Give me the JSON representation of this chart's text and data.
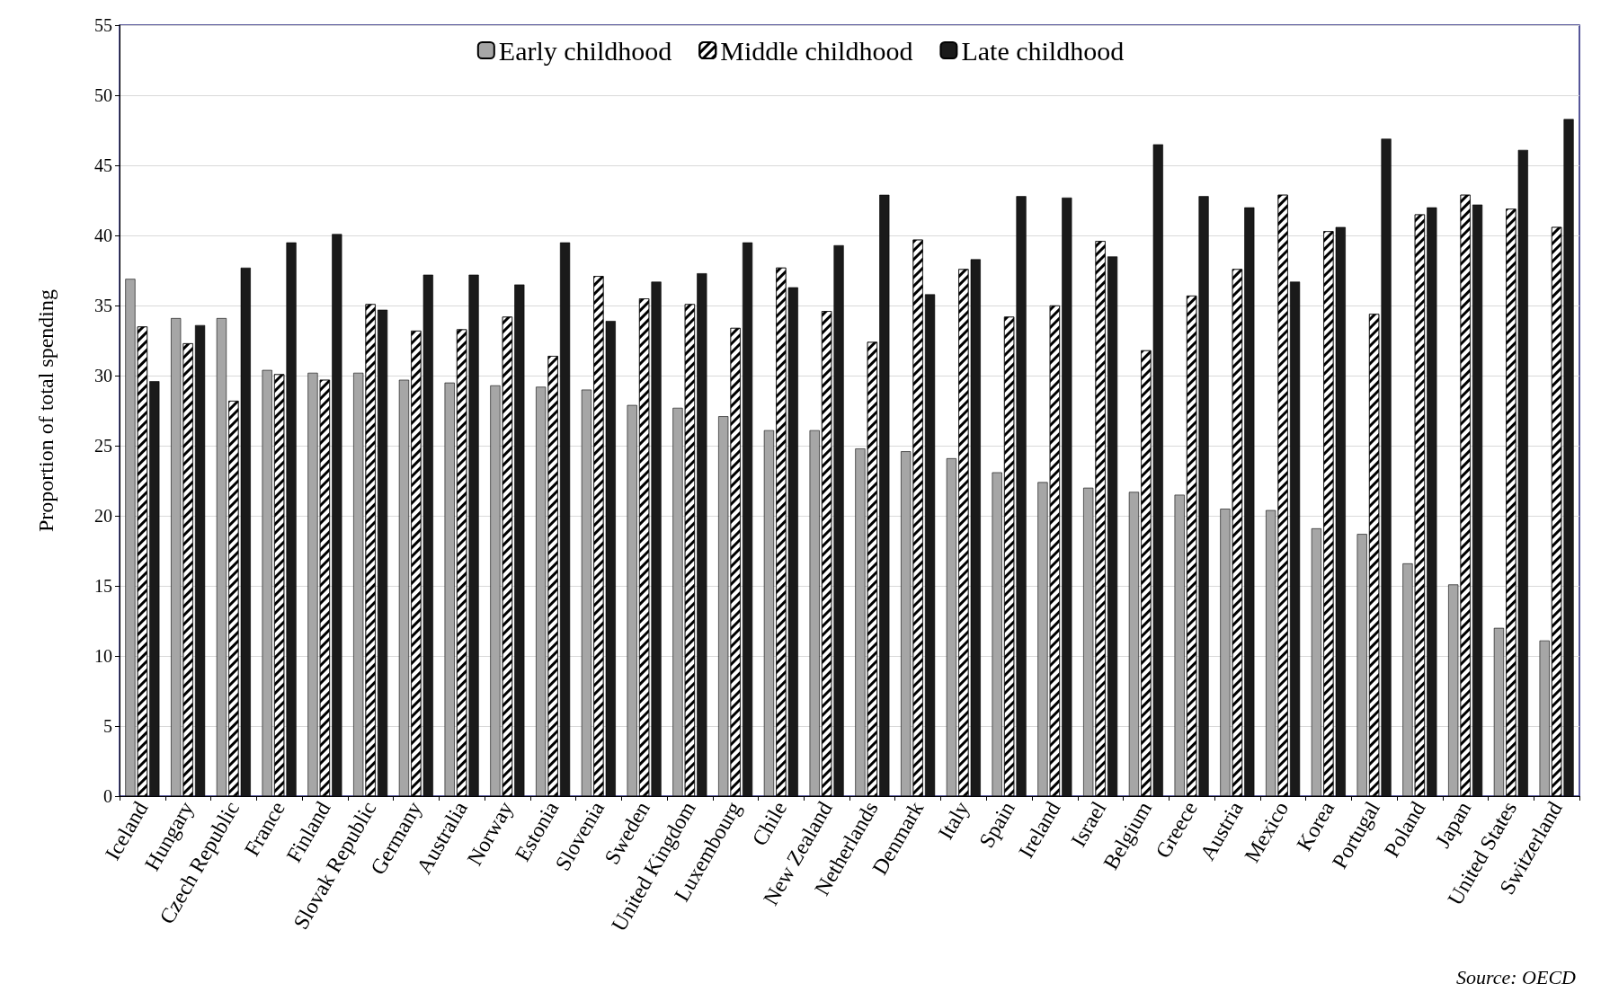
{
  "chart_data": {
    "type": "bar",
    "ylabel": "Proportion of total spending",
    "categories": [
      "Iceland",
      "Hungary",
      "Czech Republic",
      "France",
      "Finland",
      "Slovak Republic",
      "Germany",
      "Australia",
      "Norway",
      "Estonia",
      "Slovenia",
      "Sweden",
      "United Kingdom",
      "Luxembourg",
      "Chile",
      "New Zealand",
      "Netherlands",
      "Denmark",
      "Italy",
      "Spain",
      "Ireland",
      "Israel",
      "Belgium",
      "Greece",
      "Austria",
      "Mexico",
      "Korea",
      "Portugal",
      "Poland",
      "Japan",
      "United States",
      "Switzerland"
    ],
    "series": [
      {
        "name": "Early childhood",
        "color": "#a6a6a6",
        "values": [
          36.9,
          34.1,
          34.1,
          30.4,
          30.2,
          30.2,
          29.7,
          29.5,
          29.3,
          29.2,
          29.0,
          27.9,
          27.7,
          27.1,
          26.1,
          26.1,
          24.8,
          24.6,
          24.1,
          23.1,
          22.4,
          22.0,
          21.7,
          21.5,
          20.5,
          20.4,
          19.1,
          18.7,
          16.6,
          15.1,
          12.0,
          11.1
        ]
      },
      {
        "name": "Middle childhood",
        "color": "#ffffff",
        "values": [
          33.5,
          32.3,
          28.2,
          30.1,
          29.7,
          35.1,
          33.2,
          33.3,
          34.2,
          31.4,
          37.1,
          35.5,
          35.1,
          33.4,
          37.7,
          34.6,
          32.4,
          39.7,
          37.6,
          34.2,
          35.0,
          39.6,
          31.8,
          35.7,
          37.6,
          42.9,
          40.3,
          34.4,
          41.5,
          42.9,
          41.9,
          40.6
        ]
      },
      {
        "name": "Late childhood",
        "color": "#1a1a1a",
        "values": [
          29.6,
          33.6,
          37.7,
          39.5,
          40.1,
          34.7,
          37.2,
          37.2,
          36.5,
          39.5,
          33.9,
          36.7,
          37.3,
          39.5,
          36.3,
          39.3,
          42.9,
          35.8,
          38.3,
          42.8,
          42.7,
          38.5,
          46.5,
          42.8,
          42.0,
          36.7,
          40.6,
          46.9,
          42.0,
          42.2,
          46.1,
          48.3
        ]
      }
    ],
    "ylim": [
      0,
      55
    ],
    "yticks": [
      0,
      5,
      10,
      15,
      20,
      25,
      30,
      35,
      40,
      45,
      50,
      55
    ],
    "grid": "y",
    "legend": "top",
    "annotations": [
      "Source: OECD"
    ]
  }
}
